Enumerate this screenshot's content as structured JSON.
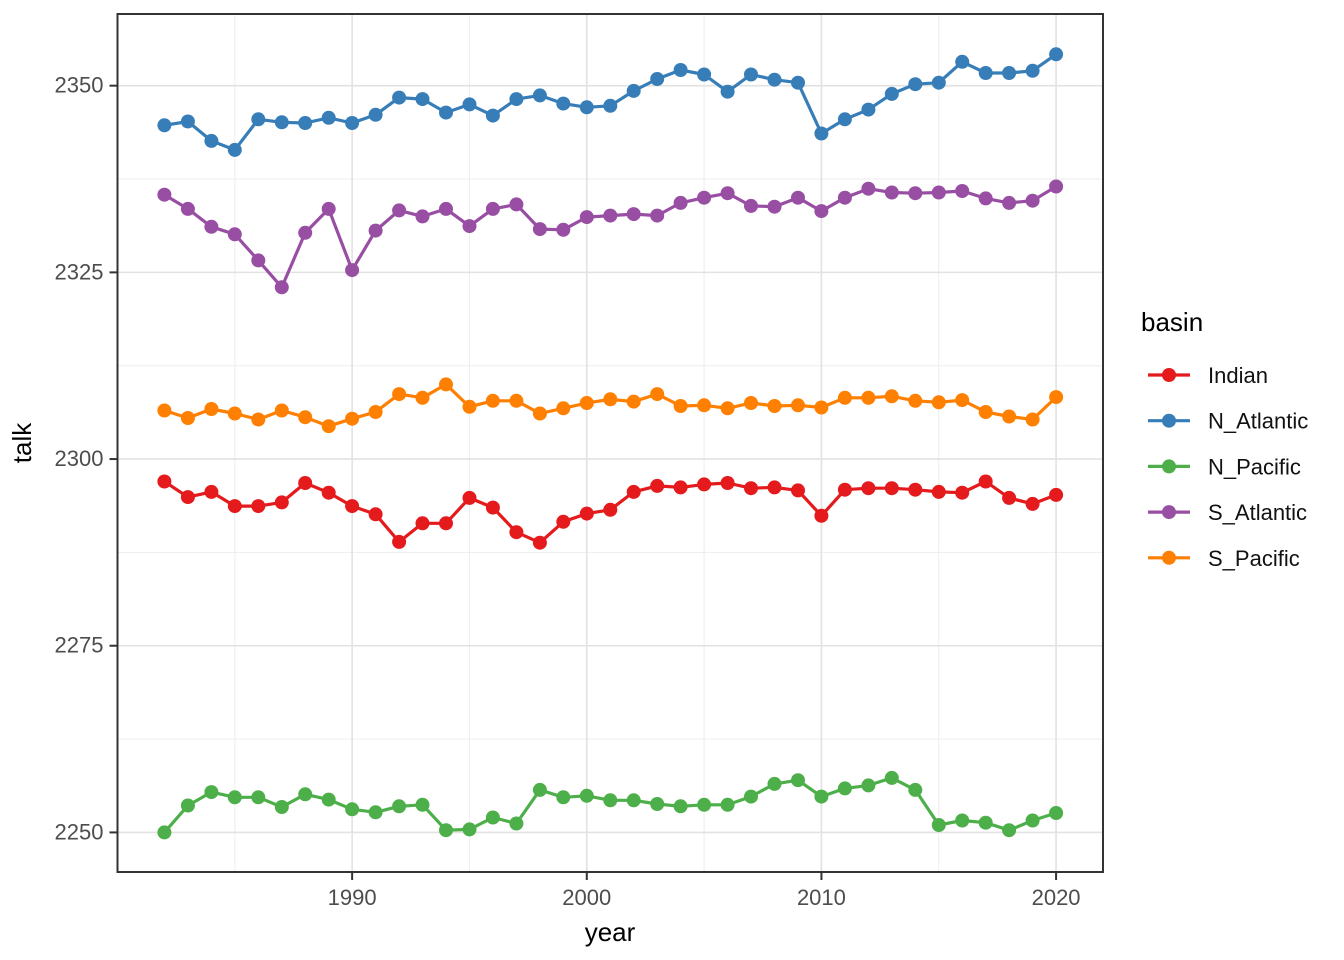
{
  "chart_data": {
    "type": "line",
    "title": "",
    "xlabel": "year",
    "ylabel": "talk",
    "legend_title": "basin",
    "legend_position": "right",
    "grid": true,
    "background_color": "#FFFFFF",
    "panel_border_color": "#333333",
    "major_grid_color": "#E2E2E2",
    "minor_grid_color": "#EDEDED",
    "axis_text_color": "#4D4D4D",
    "axis_title_color": "#000000",
    "xlim": [
      1980.0,
      2022.0
    ],
    "ylim": [
      2244.7,
      2359.6
    ],
    "x_ticks": [
      1990,
      2000,
      2010,
      2020
    ],
    "y_ticks": [
      2250,
      2275,
      2300,
      2325,
      2350
    ],
    "x_minor_ticks": [
      1985,
      1995,
      2005,
      2015
    ],
    "y_minor_ticks": [
      2262.5,
      2287.5,
      2312.5,
      2337.5
    ],
    "x": [
      1982,
      1983,
      1984,
      1985,
      1986,
      1987,
      1988,
      1989,
      1990,
      1991,
      1992,
      1993,
      1994,
      1995,
      1996,
      1997,
      1998,
      1999,
      2000,
      2001,
      2002,
      2003,
      2004,
      2005,
      2006,
      2007,
      2008,
      2009,
      2010,
      2011,
      2012,
      2013,
      2014,
      2015,
      2016,
      2017,
      2018,
      2019,
      2020
    ],
    "series": [
      {
        "name": "Indian",
        "color": "#E41A1C",
        "values": [
          2297.0,
          2294.9,
          2295.6,
          2293.7,
          2293.7,
          2294.2,
          2296.8,
          2295.5,
          2293.7,
          2292.6,
          2288.9,
          2291.4,
          2291.4,
          2294.8,
          2293.5,
          2290.2,
          2288.8,
          2291.6,
          2292.7,
          2293.2,
          2295.6,
          2296.4,
          2296.2,
          2296.6,
          2296.8,
          2296.1,
          2296.2,
          2295.8,
          2292.4,
          2295.9,
          2296.1,
          2296.1,
          2295.9,
          2295.6,
          2295.5,
          2297.0,
          2294.8,
          2294.0,
          2295.2
        ]
      },
      {
        "name": "N_Atlantic",
        "color": "#377EB8",
        "values": [
          2344.7,
          2345.2,
          2342.6,
          2341.4,
          2345.5,
          2345.1,
          2345.0,
          2345.7,
          2345.0,
          2346.1,
          2348.4,
          2348.2,
          2346.4,
          2347.5,
          2346.0,
          2348.2,
          2348.7,
          2347.6,
          2347.1,
          2347.3,
          2349.3,
          2350.9,
          2352.1,
          2351.5,
          2349.2,
          2351.5,
          2350.8,
          2350.4,
          2343.6,
          2345.5,
          2346.8,
          2348.9,
          2350.2,
          2350.4,
          2353.2,
          2351.7,
          2351.7,
          2352.0,
          2354.2
        ]
      },
      {
        "name": "N_Pacific",
        "color": "#4DAF4A",
        "values": [
          2250.0,
          2253.6,
          2255.4,
          2254.7,
          2254.7,
          2253.4,
          2255.1,
          2254.4,
          2253.1,
          2252.7,
          2253.5,
          2253.7,
          2250.3,
          2250.4,
          2252.0,
          2251.2,
          2255.7,
          2254.7,
          2254.9,
          2254.3,
          2254.3,
          2253.8,
          2253.5,
          2253.7,
          2253.7,
          2254.8,
          2256.5,
          2257.0,
          2254.8,
          2255.9,
          2256.3,
          2257.3,
          2255.7,
          2251.0,
          2251.6,
          2251.3,
          2250.3,
          2251.6,
          2252.6
        ]
      },
      {
        "name": "S_Atlantic",
        "color": "#984EA3",
        "values": [
          2335.4,
          2333.5,
          2331.1,
          2330.1,
          2326.6,
          2323.0,
          2330.3,
          2333.5,
          2325.3,
          2330.6,
          2333.3,
          2332.5,
          2333.5,
          2331.2,
          2333.5,
          2334.1,
          2330.8,
          2330.7,
          2332.4,
          2332.6,
          2332.8,
          2332.6,
          2334.3,
          2335.0,
          2335.6,
          2333.9,
          2333.8,
          2335.0,
          2333.2,
          2335.0,
          2336.2,
          2335.7,
          2335.6,
          2335.7,
          2335.9,
          2334.9,
          2334.3,
          2334.6,
          2336.5
        ]
      },
      {
        "name": "S_Pacific",
        "color": "#FF7F00",
        "values": [
          2306.5,
          2305.5,
          2306.7,
          2306.1,
          2305.3,
          2306.5,
          2305.6,
          2304.4,
          2305.4,
          2306.3,
          2308.7,
          2308.2,
          2310.0,
          2307.0,
          2307.8,
          2307.8,
          2306.1,
          2306.8,
          2307.5,
          2308.0,
          2307.7,
          2308.7,
          2307.1,
          2307.2,
          2306.8,
          2307.5,
          2307.1,
          2307.2,
          2306.9,
          2308.2,
          2308.2,
          2308.4,
          2307.8,
          2307.6,
          2307.9,
          2306.3,
          2305.7,
          2305.3,
          2308.3
        ]
      }
    ]
  }
}
